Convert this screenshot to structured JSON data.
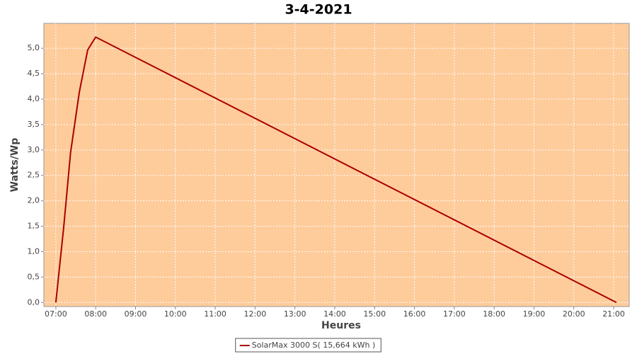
{
  "chart_data": {
    "type": "line",
    "title": "3-4-2021",
    "x_label": "Heures",
    "y_label": "Watts/Wp",
    "x": [
      7.0,
      7.2,
      7.37,
      7.59,
      7.8,
      8.0,
      21.07
    ],
    "series": [
      {
        "name": "SolarMax 3000 S( 15,664 kWh )",
        "color": "#aa0000",
        "values": [
          0,
          1.5,
          2.95,
          4.14,
          4.97,
          5.22,
          0
        ]
      }
    ],
    "xlim": [
      6.7,
      21.39
    ],
    "xticks": [
      {
        "value": 7,
        "label": "07:00"
      },
      {
        "value": 8,
        "label": "08:00"
      },
      {
        "value": 9,
        "label": "09:00"
      },
      {
        "value": 10,
        "label": "10:00"
      },
      {
        "value": 11,
        "label": "11:00"
      },
      {
        "value": 12,
        "label": "12:00"
      },
      {
        "value": 13,
        "label": "13:00"
      },
      {
        "value": 14,
        "label": "14:00"
      },
      {
        "value": 15,
        "label": "15:00"
      },
      {
        "value": 16,
        "label": "16:00"
      },
      {
        "value": 17,
        "label": "17:00"
      },
      {
        "value": 18,
        "label": "18:00"
      },
      {
        "value": 19,
        "label": "19:00"
      },
      {
        "value": 20,
        "label": "20:00"
      },
      {
        "value": 21,
        "label": "21:00"
      }
    ],
    "ylim": [
      -0.08,
      5.49
    ],
    "yticks": [
      {
        "value": 0,
        "label": "0,0"
      },
      {
        "value": 0.5,
        "label": "0,5"
      },
      {
        "value": 1,
        "label": "1,0"
      },
      {
        "value": 1.5,
        "label": "1,5"
      },
      {
        "value": 2,
        "label": "2,0"
      },
      {
        "value": 2.5,
        "label": "2,5"
      },
      {
        "value": 3,
        "label": "3,0"
      },
      {
        "value": 3.5,
        "label": "3,5"
      },
      {
        "value": 4,
        "label": "4,0"
      },
      {
        "value": 4.5,
        "label": "4,5"
      },
      {
        "value": 5,
        "label": "5,0"
      }
    ],
    "grid": true,
    "plot_background": "#fecb9b",
    "legend": "bottom"
  }
}
